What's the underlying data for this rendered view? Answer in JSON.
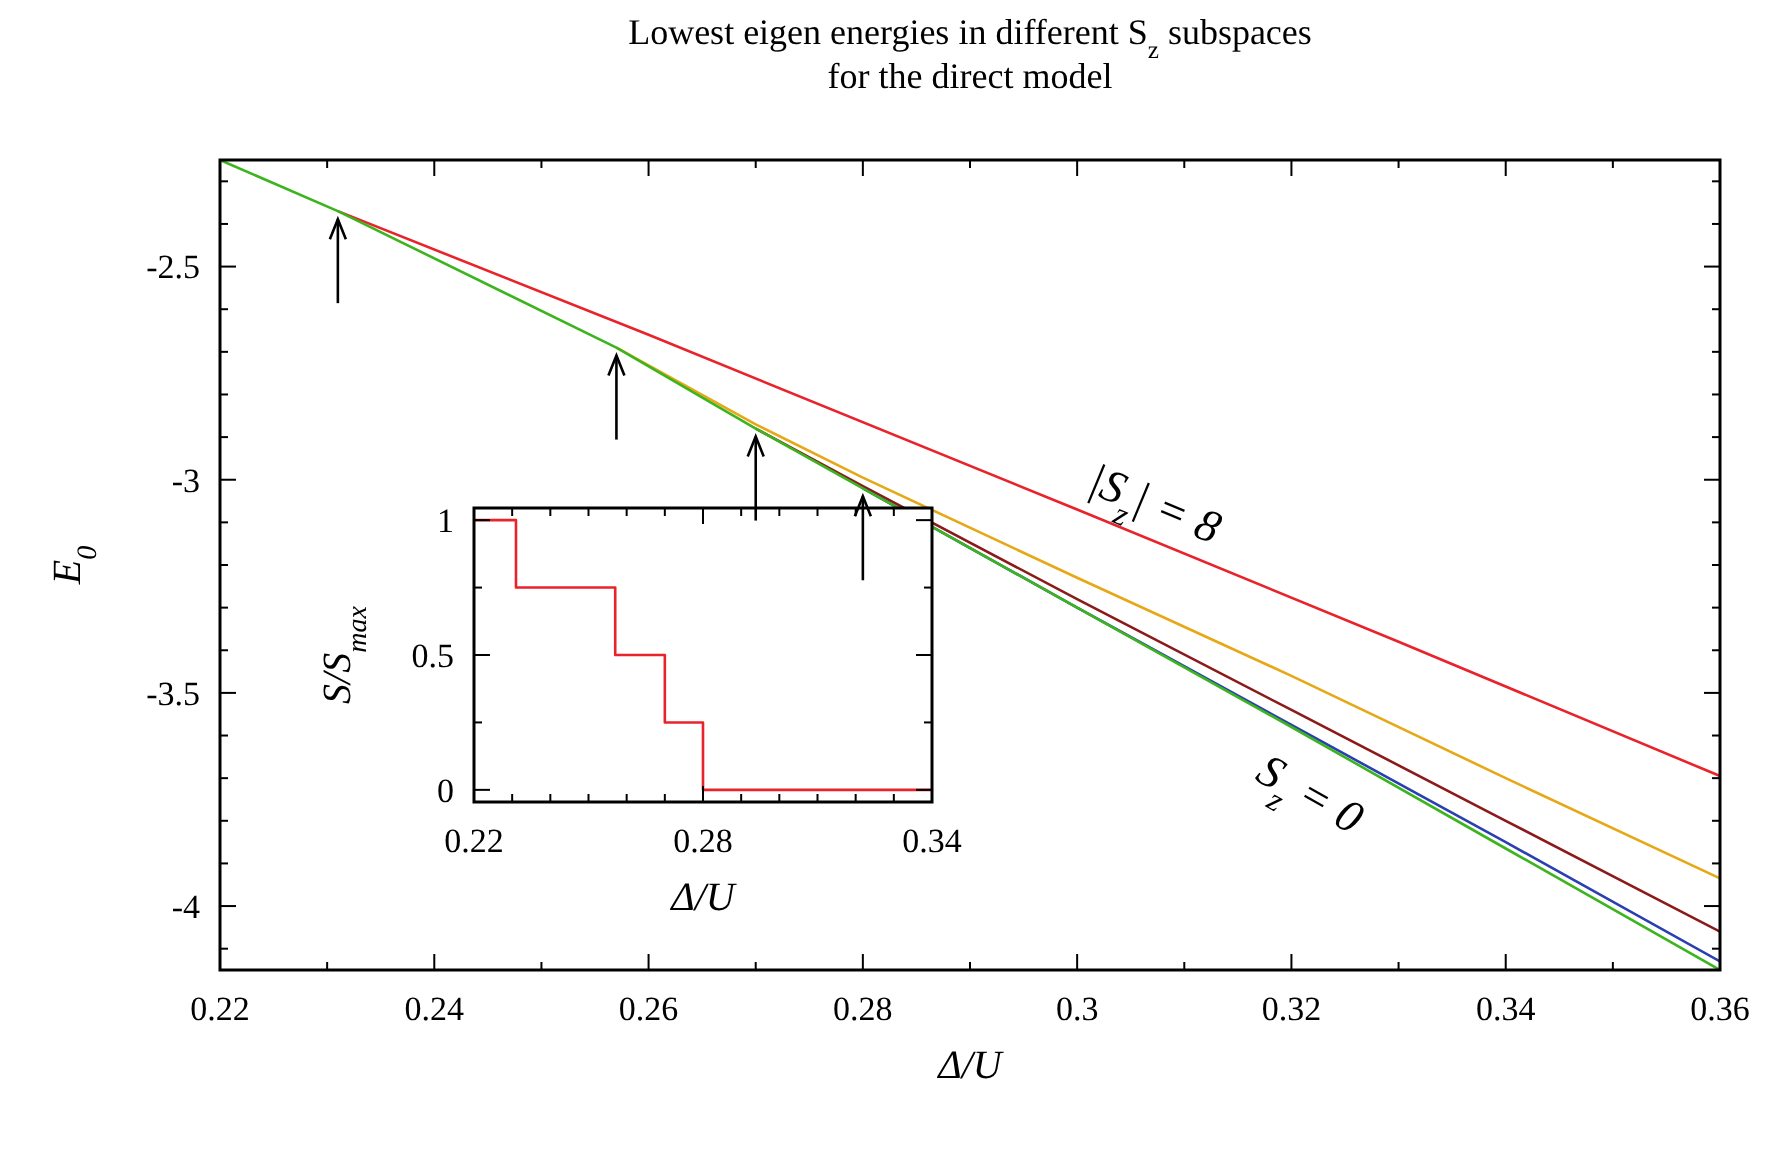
{
  "chart_data": [
    {
      "type": "line",
      "title": "Lowest eigen energies in different S$_{z}$ subspaces\nfor the direct model",
      "xlabel": "Δ/U",
      "ylabel": "E$_{0}$",
      "xlim": [
        0.22,
        0.36
      ],
      "ylim": [
        -4.15,
        -2.25
      ],
      "xticks": [
        0.22,
        {
          "value": 0.23,
          "label": null
        },
        0.24,
        {
          "value": 0.25,
          "label": null
        },
        0.26,
        {
          "value": 0.27,
          "label": null
        },
        0.28,
        {
          "value": 0.29,
          "label": null
        },
        0.3,
        {
          "value": 0.31,
          "label": null
        },
        0.32,
        {
          "value": 0.33,
          "label": null
        },
        0.34,
        {
          "value": 0.35,
          "label": null
        },
        0.36
      ],
      "yticks": [
        {
          "value": -4.1,
          "label": null
        },
        -4,
        {
          "value": -3.9,
          "label": null
        },
        {
          "value": -3.8,
          "label": null
        },
        {
          "value": -3.7,
          "label": null
        },
        {
          "value": -3.6,
          "label": null
        },
        -3.5,
        {
          "value": -3.4,
          "label": null
        },
        {
          "value": -3.3,
          "label": null
        },
        {
          "value": -3.2,
          "label": null
        },
        {
          "value": -3.1,
          "label": null
        },
        -3,
        {
          "value": -2.9,
          "label": null
        },
        {
          "value": -2.8,
          "label": null
        },
        {
          "value": -2.7,
          "label": null
        },
        {
          "value": -2.6,
          "label": null
        },
        -2.5,
        {
          "value": -2.4,
          "label": null
        },
        {
          "value": -2.3,
          "label": null
        }
      ],
      "series": [
        {
          "name": "|S$_{z}$| = 8",
          "color": "#e8232b",
          "x": [
            0.231,
            0.26,
            0.3,
            0.33,
            0.36
          ],
          "values": [
            -2.37,
            -2.66,
            -3.07,
            -3.38,
            -3.695
          ]
        },
        {
          "color": "#e6a817",
          "x": [
            0.257,
            0.27,
            0.28,
            0.3,
            0.32,
            0.34,
            0.36
          ],
          "values": [
            -2.69,
            -2.87,
            -2.995,
            -3.23,
            -3.46,
            -3.7,
            -3.935
          ]
        },
        {
          "color": "#8b1a1a",
          "x": [
            0.27,
            0.28,
            0.3,
            0.32,
            0.34,
            0.36
          ],
          "values": [
            -2.88,
            -3.015,
            -3.28,
            -3.54,
            -3.8,
            -4.06
          ]
        },
        {
          "color": "#2a3fb0",
          "x": [
            0.28,
            0.3,
            0.32,
            0.34,
            0.36
          ],
          "values": [
            -3.02,
            -3.3,
            -3.575,
            -3.85,
            -4.13
          ]
        },
        {
          "name": "S$_{z}$ = 0",
          "color": "#3cb41e",
          "x": [
            0.22,
            0.231,
            0.257,
            0.27,
            0.28,
            0.3,
            0.32,
            0.34,
            0.36
          ],
          "values": [
            -2.25,
            -2.37,
            -2.69,
            -2.88,
            -3.02,
            -3.3,
            -3.58,
            -3.865,
            -4.15
          ]
        }
      ]
    },
    {
      "type": "step",
      "xlabel": "Δ/U",
      "ylabel": "S/S$_{max}$",
      "xlim": [
        0.22,
        0.34
      ],
      "ylim": [
        -0.045,
        1.045
      ],
      "xticks": [
        0.22,
        {
          "value": 0.23,
          "label": null
        },
        {
          "value": 0.24,
          "label": null
        },
        {
          "value": 0.25,
          "label": null
        },
        {
          "value": 0.26,
          "label": null
        },
        {
          "value": 0.27,
          "label": null
        },
        0.28,
        {
          "value": 0.29,
          "label": null
        },
        {
          "value": 0.3,
          "label": null
        },
        {
          "value": 0.31,
          "label": null
        },
        {
          "value": 0.32,
          "label": null
        },
        {
          "value": 0.33,
          "label": null
        },
        0.34
      ],
      "yticks": [
        0,
        {
          "value": 0.25,
          "label": null
        },
        0.5,
        {
          "value": 0.75,
          "label": null
        },
        1
      ],
      "series": [
        {
          "color": "#e8232b",
          "x": [
            0.22,
            0.231,
            0.257,
            0.27,
            0.28,
            0.34
          ],
          "values": [
            1,
            0.75,
            0.5,
            0.25,
            0,
            0
          ]
        }
      ]
    }
  ]
}
